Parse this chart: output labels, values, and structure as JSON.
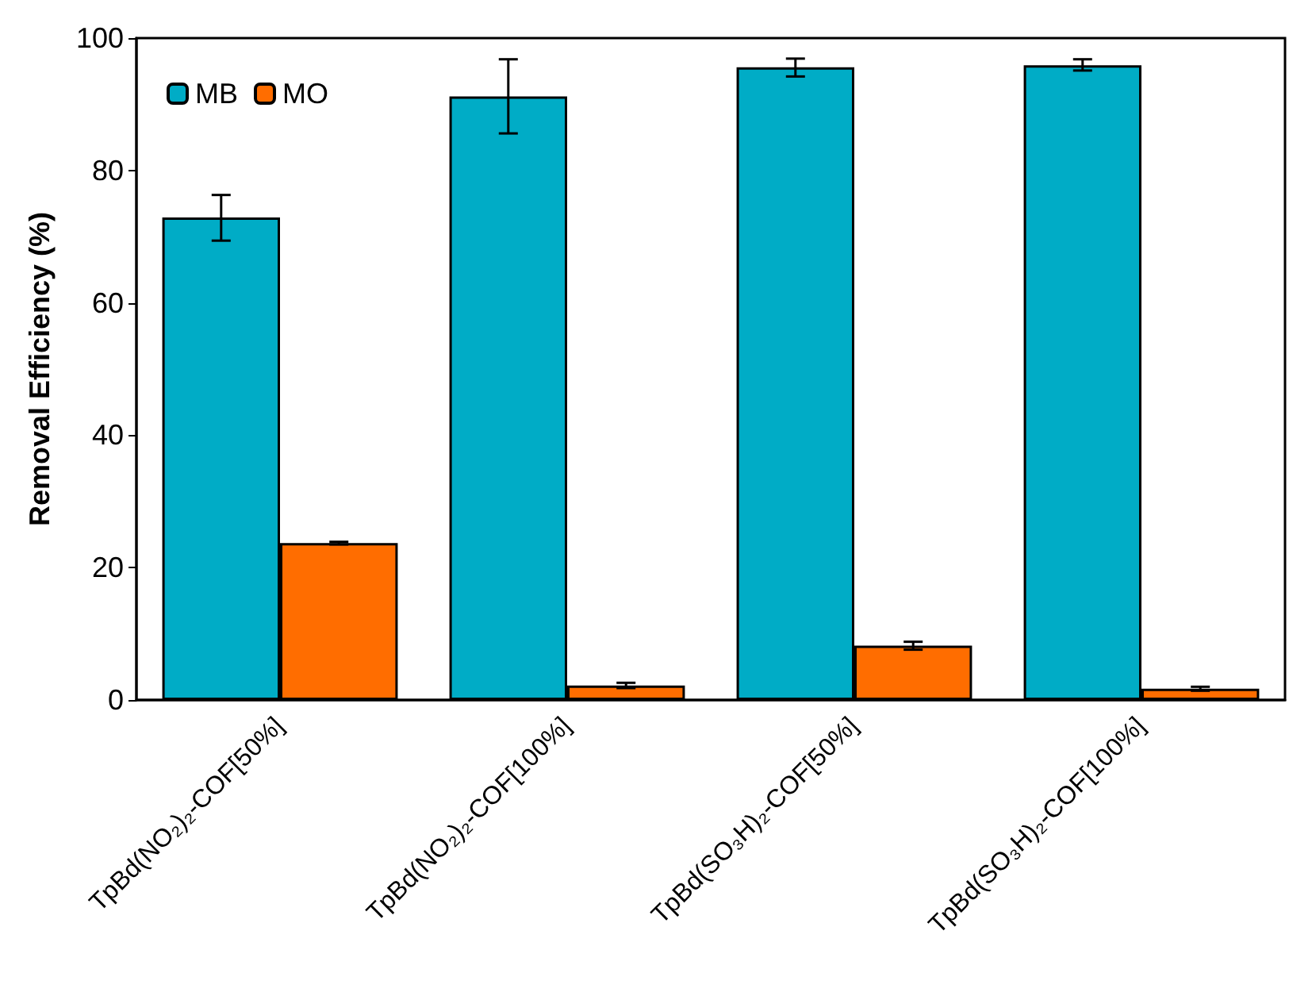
{
  "chart_data": {
    "type": "bar",
    "ylabel": "Removal Efficiency (%)",
    "categories": [
      "TpBd(NO₂)₂-COF[50%]",
      "TpBd(NO₂)₂-COF[100%]",
      "TpBd(SO₃H)₂-COF[50%]",
      "TpBd(SO₃H)₂-COF[100%]"
    ],
    "series": [
      {
        "name": "MB",
        "color": "#00acc6",
        "values": [
          72.9,
          91.2,
          95.6,
          95.9
        ],
        "errors": [
          [
            69.4,
            76.3
          ],
          [
            85.6,
            96.8
          ],
          [
            94.2,
            96.9
          ],
          [
            95.1,
            96.8
          ]
        ]
      },
      {
        "name": "MO",
        "color": "#ff6d00",
        "values": [
          23.7,
          2.2,
          8.2,
          1.7
        ],
        "errors": [
          [
            23.5,
            23.9
          ],
          [
            1.8,
            2.6
          ],
          [
            7.6,
            8.8
          ],
          [
            1.4,
            2.0
          ]
        ]
      }
    ],
    "ylim": [
      0,
      100
    ],
    "yticks": [
      0,
      20,
      40,
      60,
      80,
      100
    ],
    "grid": false,
    "legend": "top left"
  }
}
